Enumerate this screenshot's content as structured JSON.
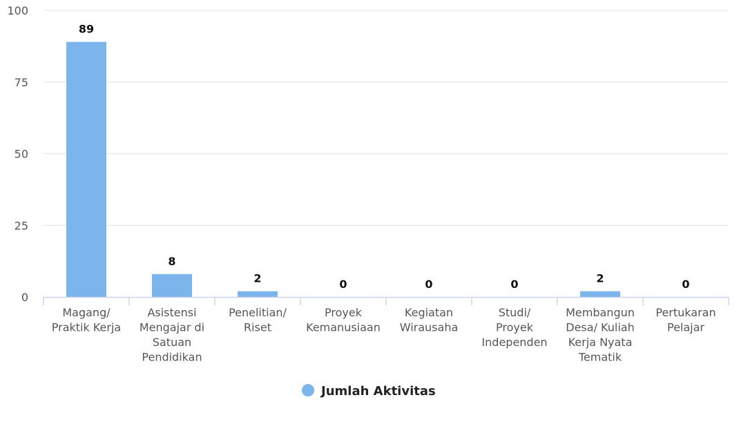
{
  "chart_data": {
    "type": "bar",
    "categories": [
      "Magang/ Praktik Kerja",
      "Asistensi Mengajar di Satuan Pendidikan",
      "Penelitian/ Riset",
      "Proyek Kemanusiaan",
      "Kegiatan Wirausaha",
      "Studi/ Proyek Independen",
      "Membangun Desa/ Kuliah Kerja Nyata Tematik",
      "Pertukaran Pelajar"
    ],
    "category_lines": [
      [
        "Magang/",
        "Praktik Kerja"
      ],
      [
        "Asistensi",
        "Mengajar di",
        "Satuan",
        "Pendidikan"
      ],
      [
        "Penelitian/",
        "Riset"
      ],
      [
        "Proyek",
        "Kemanusiaan"
      ],
      [
        "Kegiatan",
        "Wirausaha"
      ],
      [
        "Studi/",
        "Proyek",
        "Independen"
      ],
      [
        "Membangun",
        "Desa/ Kuliah",
        "Kerja Nyata",
        "Tematik"
      ],
      [
        "Pertukaran",
        "Pelajar"
      ]
    ],
    "series": [
      {
        "name": "Jumlah Aktivitas",
        "values": [
          89,
          8,
          2,
          0,
          0,
          0,
          2,
          0
        ]
      }
    ],
    "yticks": [
      0,
      25,
      50,
      75,
      100
    ],
    "ylim": [
      0,
      100
    ],
    "grid": true,
    "legend": "bottom-center",
    "colors": {
      "bar": "#7cb5ec",
      "grid": "#e6e6e6",
      "axis": "#ccd6eb"
    }
  }
}
